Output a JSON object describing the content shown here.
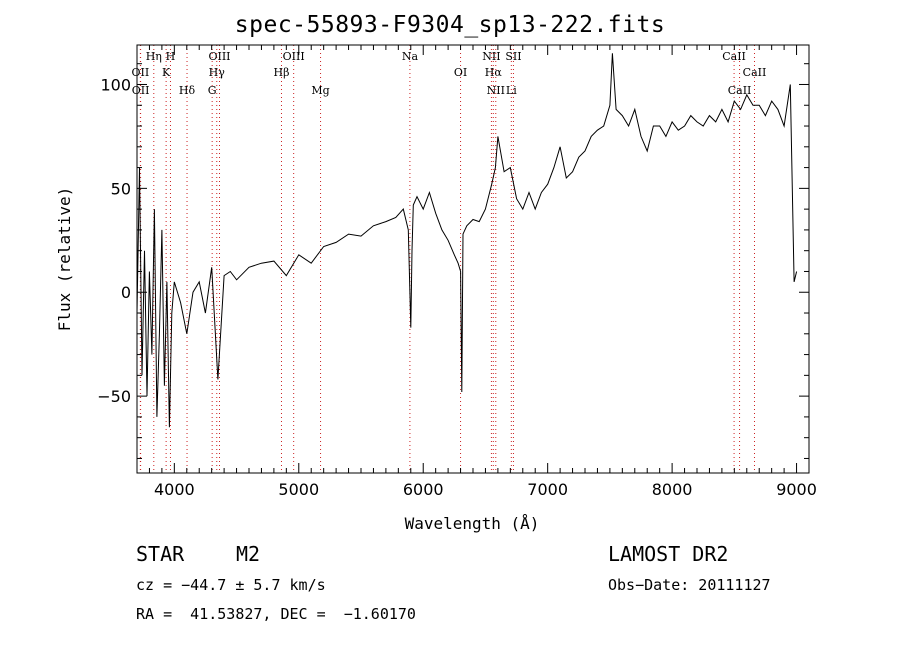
{
  "chart_data": {
    "type": "line",
    "title": "spec-55893-F9304_sp13-222.fits",
    "xlabel": "Wavelength (Å)",
    "ylabel": "Flux (relative)",
    "xlim": [
      3700,
      9100
    ],
    "ylim": [
      -87,
      119
    ],
    "xticks": [
      "4000",
      "5000",
      "6000",
      "7000",
      "8000",
      "9000"
    ],
    "yticks": [
      "-50",
      "0",
      "50",
      "100"
    ],
    "series": [
      {
        "x": [
          3700,
          3720,
          3740,
          3760,
          3780,
          3800,
          3820,
          3840,
          3860,
          3880,
          3900,
          3920,
          3940,
          3960,
          3980,
          4000,
          4050,
          4100,
          4150,
          4200,
          4250,
          4300,
          4350,
          4400,
          4450,
          4500,
          4600,
          4700,
          4800,
          4900,
          5000,
          5100,
          5200,
          5300,
          5400,
          5500,
          5600,
          5700,
          5780,
          5840,
          5880,
          5900,
          5910,
          5920,
          5950,
          6000,
          6050,
          6100,
          6150,
          6200,
          6250,
          6280,
          6300,
          6310,
          6320,
          6350,
          6400,
          6450,
          6500,
          6550,
          6580,
          6600,
          6650,
          6700,
          6750,
          6800,
          6850,
          6900,
          6950,
          7000,
          7050,
          7100,
          7150,
          7200,
          7250,
          7300,
          7350,
          7400,
          7450,
          7500,
          7520,
          7550,
          7600,
          7650,
          7700,
          7750,
          7800,
          7850,
          7900,
          7950,
          8000,
          8050,
          8100,
          8150,
          8200,
          8250,
          8300,
          8350,
          8400,
          8450,
          8500,
          8550,
          8600,
          8650,
          8700,
          8750,
          8800,
          8850,
          8900,
          8950,
          8980,
          9000
        ],
        "y": [
          -10,
          60,
          -40,
          20,
          -50,
          10,
          -30,
          40,
          -60,
          -20,
          30,
          -45,
          5,
          -65,
          -10,
          5,
          -5,
          -20,
          0,
          5,
          -10,
          12,
          -42,
          8,
          10,
          6,
          12,
          14,
          15,
          8,
          18,
          14,
          22,
          24,
          28,
          27,
          32,
          34,
          36,
          40,
          30,
          -17,
          20,
          42,
          46,
          40,
          48,
          38,
          30,
          25,
          18,
          14,
          10,
          -48,
          28,
          32,
          35,
          34,
          40,
          52,
          60,
          75,
          58,
          60,
          45,
          40,
          48,
          40,
          48,
          52,
          60,
          70,
          55,
          58,
          65,
          68,
          75,
          78,
          80,
          90,
          115,
          88,
          85,
          80,
          88,
          75,
          68,
          80,
          80,
          75,
          82,
          78,
          80,
          85,
          82,
          80,
          85,
          82,
          88,
          82,
          92,
          88,
          95,
          90,
          90,
          85,
          92,
          88,
          80,
          100,
          5,
          10
        ]
      }
    ],
    "annotations": [
      {
        "label": "Hη",
        "x": 3835
      },
      {
        "label": "OII",
        "x": 3727
      },
      {
        "label": "OII",
        "x": 3729
      },
      {
        "label": "H",
        "x": 3969
      },
      {
        "label": "K",
        "x": 3934
      },
      {
        "label": "Hδ",
        "x": 4102
      },
      {
        "label": "OIII",
        "x": 4363
      },
      {
        "label": "Hγ",
        "x": 4341
      },
      {
        "label": "G",
        "x": 4304
      },
      {
        "label": "OIII",
        "x": 4959
      },
      {
        "label": "Hβ",
        "x": 4861
      },
      {
        "label": "Mg",
        "x": 5175
      },
      {
        "label": "Na",
        "x": 5893
      },
      {
        "label": "OI",
        "x": 6300
      },
      {
        "label": "NII",
        "x": 6583
      },
      {
        "label": "NII",
        "x": 6548
      },
      {
        "label": "Hα",
        "x": 6563
      },
      {
        "label": "Li",
        "x": 6708
      },
      {
        "label": "SII",
        "x": 6725
      },
      {
        "label": "CaII",
        "x": 8662
      },
      {
        "label": "CaII",
        "x": 8542
      },
      {
        "label": "CaII",
        "x": 8498
      }
    ],
    "grid": false
  },
  "info": {
    "class_label": "STAR",
    "subclass": "M2",
    "survey": "LAMOST DR2",
    "cz": "cz = −44.7 ± 5.7 km/s",
    "obs_date": "Obs−Date: 20111127",
    "coords": "RA =  41.53827, DEC =  −1.60170"
  }
}
